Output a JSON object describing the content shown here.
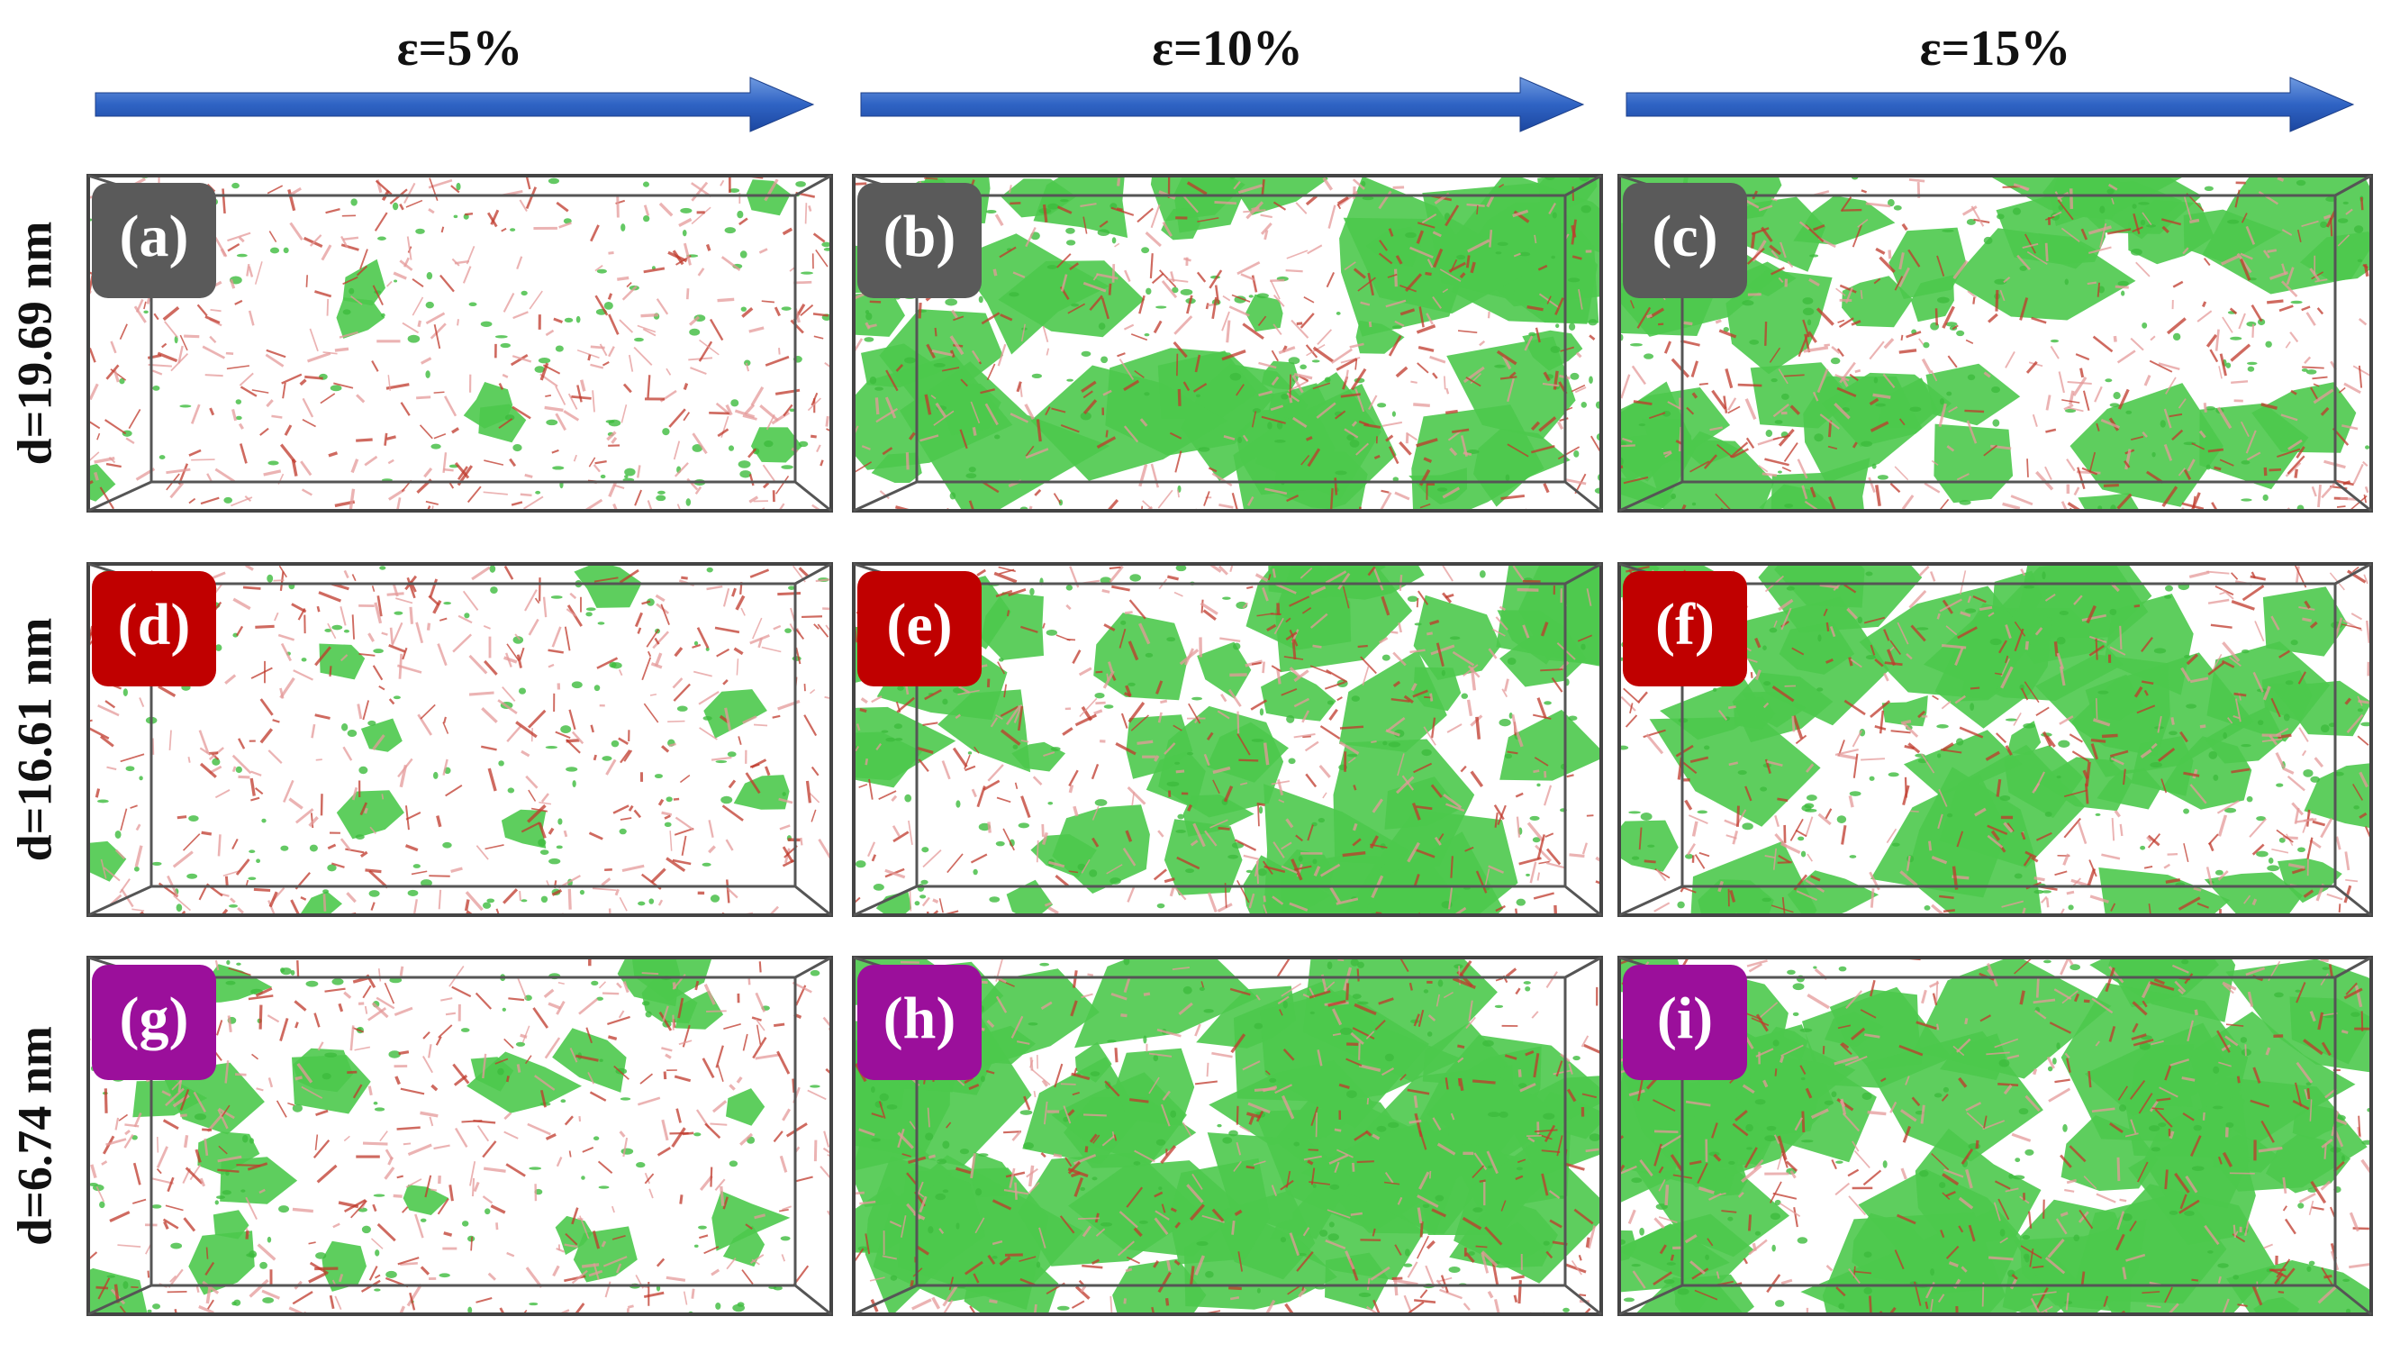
{
  "columns": [
    "ε=5%",
    "ε=10%",
    "ε=15%"
  ],
  "rows": [
    {
      "label": "d=19.69 nm",
      "badge_color": "#5a5a5a",
      "panels": [
        "(a)",
        "(b)",
        "(c)"
      ]
    },
    {
      "label": "d=16.61 nm",
      "badge_color": "#c00000",
      "panels": [
        "(d)",
        "(e)",
        "(f)"
      ]
    },
    {
      "label": "d=6.74 nm",
      "badge_color": "#9b0f9b",
      "panels": [
        "(g)",
        "(h)",
        "(i)"
      ]
    }
  ]
}
